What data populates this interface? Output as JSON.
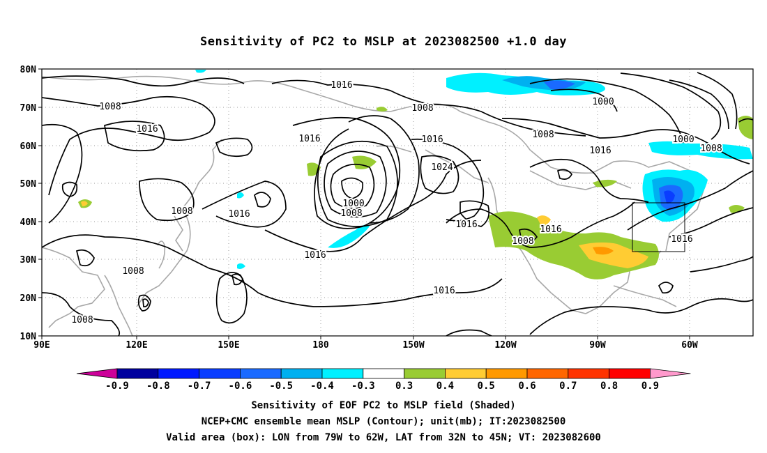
{
  "title": "Sensitivity of PC2 to MSLP at 2023082500 +1.0 day",
  "axes": {
    "lat_labels": [
      "80N",
      "70N",
      "60N",
      "50N",
      "40N",
      "30N",
      "20N",
      "10N"
    ],
    "lon_labels": [
      "90E",
      "120E",
      "150E",
      "180",
      "150W",
      "120W",
      "90W",
      "60W"
    ]
  },
  "contour_labels": [
    "1016",
    "1008",
    "1016",
    "1016",
    "1016",
    "1008",
    "1016",
    "1024",
    "1000",
    "1008",
    "1016",
    "1016",
    "1016",
    "1008",
    "1008",
    "1016",
    "1008",
    "1000",
    "1000",
    "1008",
    "1016",
    "1008"
  ],
  "colorbar": {
    "labels": [
      "-0.9",
      "-0.8",
      "-0.7",
      "-0.6",
      "-0.5",
      "-0.4",
      "-0.3",
      "0.3",
      "0.4",
      "0.5",
      "0.6",
      "0.7",
      "0.8",
      "0.9"
    ],
    "colors": [
      "#00009e",
      "#0019ff",
      "#0a3dff",
      "#1a6aff",
      "#00b0f0",
      "#00f0ff",
      "#ffffff",
      "#99cc33",
      "#ffcc33",
      "#ff9900",
      "#ff6600",
      "#ff3300",
      "#ff0000"
    ],
    "low_arrow_color": "#cc0099",
    "high_arrow_color": "#ff99cc"
  },
  "captions": {
    "line1": "Sensitivity of EOF PC2 to MSLP field (Shaded)",
    "line2": "NCEP+CMC ensemble mean MSLP (Contour); unit(mb); IT:2023082500",
    "line3": "Valid area (box): LON from 79W to 62W, LAT from 32N to 45N; VT: 2023082600"
  }
}
